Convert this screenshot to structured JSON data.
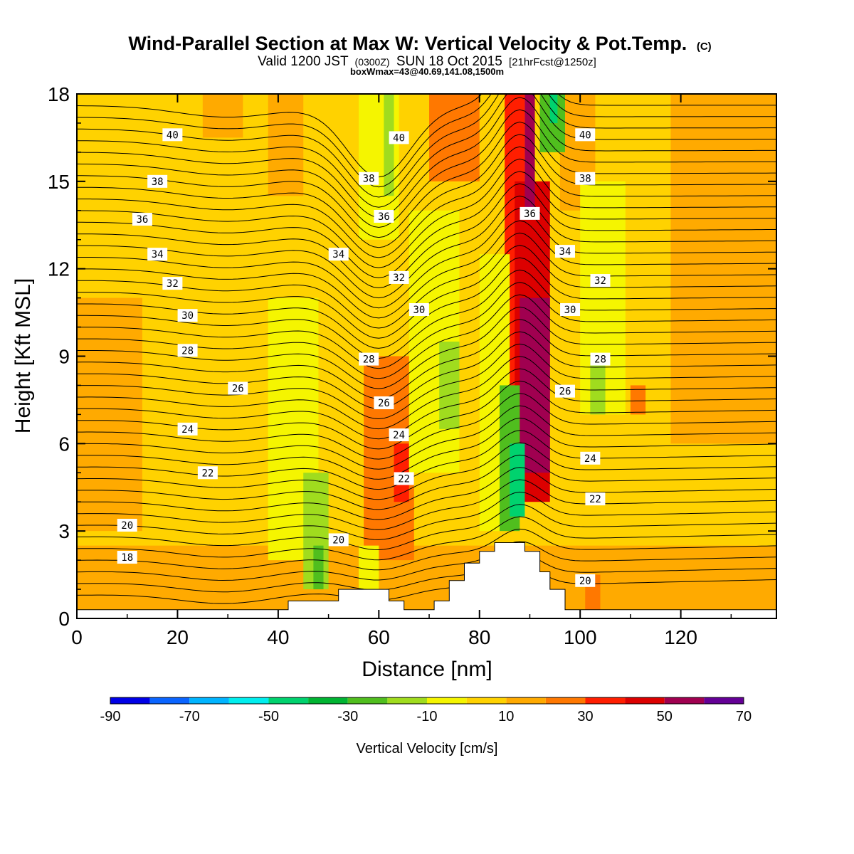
{
  "title": {
    "main": "Wind-Parallel Section at Max W: Vertical Velocity & Pot.Temp.",
    "main_mark": "(C)",
    "valid_a": "Valid 1200 JST",
    "valid_utc": "(0300Z)",
    "valid_b": "SUN 18 Oct 2015",
    "valid_fcst": "[21hrFcst@1250z]",
    "boxmax": "boxWmax=43@40.69,141.08,1500m"
  },
  "chart_data": {
    "type": "heatmap",
    "xlabel": "Distance [nm]",
    "ylabel": "Height [Kft MSL]",
    "xlim": [
      0,
      139
    ],
    "ylim": [
      0,
      18
    ],
    "x_ticks": [
      0,
      20,
      40,
      60,
      80,
      100,
      120
    ],
    "y_ticks": [
      0,
      3,
      6,
      9,
      12,
      15,
      18
    ],
    "colorbar": {
      "label": "Vertical Velocity [cm/s]",
      "tick_labels": [
        "-90",
        "-70",
        "-50",
        "-30",
        "-10",
        "10",
        "30",
        "50",
        "70"
      ],
      "colors": [
        "#0000e6",
        "#0a64ff",
        "#00b4ff",
        "#00eeee",
        "#00d26e",
        "#00b432",
        "#50be1e",
        "#a0dc1e",
        "#f5f500",
        "#ffd200",
        "#ffaa00",
        "#ff7800",
        "#ff1e00",
        "#dc0000",
        "#a00050",
        "#640096"
      ]
    },
    "vertical_velocity_cells": [
      {
        "x": [
          0,
          139
        ],
        "y": [
          0,
          18
        ],
        "w": 5
      },
      {
        "x": [
          0,
          139
        ],
        "y": [
          0,
          2.5
        ],
        "w": 10
      },
      {
        "x": [
          0,
          13
        ],
        "y": [
          3,
          11
        ],
        "w": 10
      },
      {
        "x": [
          25,
          33
        ],
        "y": [
          16.5,
          18
        ],
        "w": 10
      },
      {
        "x": [
          38,
          45
        ],
        "y": [
          14.5,
          18
        ],
        "w": 10
      },
      {
        "x": [
          96,
          103
        ],
        "y": [
          14,
          18
        ],
        "w": 10
      },
      {
        "x": [
          118,
          139
        ],
        "y": [
          6,
          18
        ],
        "w": 10
      },
      {
        "x": [
          57,
          67
        ],
        "y": [
          2,
          9
        ],
        "w": 20
      },
      {
        "x": [
          63,
          66
        ],
        "y": [
          4,
          6
        ],
        "w": 30
      },
      {
        "x": [
          70,
          80
        ],
        "y": [
          15,
          18
        ],
        "w": 20
      },
      {
        "x": [
          85,
          89
        ],
        "y": [
          8,
          18
        ],
        "w": 30
      },
      {
        "x": [
          87,
          94
        ],
        "y": [
          4,
          15
        ],
        "w": 40
      },
      {
        "x": [
          88,
          94
        ],
        "y": [
          5,
          11
        ],
        "w": 50
      },
      {
        "x": [
          89,
          91
        ],
        "y": [
          14,
          18
        ],
        "w": 50
      },
      {
        "x": [
          110,
          113
        ],
        "y": [
          7,
          8
        ],
        "w": 20
      },
      {
        "x": [
          101,
          104
        ],
        "y": [
          0,
          1.5
        ],
        "w": 20
      },
      {
        "x": [
          38,
          48
        ],
        "y": [
          2,
          11
        ],
        "w": -10
      },
      {
        "x": [
          45,
          50
        ],
        "y": [
          1,
          5
        ],
        "w": -20
      },
      {
        "x": [
          47,
          49
        ],
        "y": [
          1,
          2.5
        ],
        "w": -30
      },
      {
        "x": [
          56,
          60
        ],
        "y": [
          0.5,
          2.5
        ],
        "w": -10
      },
      {
        "x": [
          56,
          64
        ],
        "y": [
          13,
          18
        ],
        "w": -10
      },
      {
        "x": [
          61,
          63
        ],
        "y": [
          14.5,
          18
        ],
        "w": -20
      },
      {
        "x": [
          66,
          76
        ],
        "y": [
          5,
          14
        ],
        "w": -10
      },
      {
        "x": [
          72,
          76
        ],
        "y": [
          6.5,
          9.5
        ],
        "w": -20
      },
      {
        "x": [
          80,
          86
        ],
        "y": [
          3,
          12.5
        ],
        "w": -10
      },
      {
        "x": [
          84,
          88
        ],
        "y": [
          3,
          8
        ],
        "w": -30
      },
      {
        "x": [
          86,
          89
        ],
        "y": [
          3.5,
          6
        ],
        "w": -50
      },
      {
        "x": [
          92,
          97
        ],
        "y": [
          16,
          18
        ],
        "w": -30
      },
      {
        "x": [
          94,
          95.5
        ],
        "y": [
          17,
          18
        ],
        "w": -50
      },
      {
        "x": [
          100,
          109
        ],
        "y": [
          7,
          15
        ],
        "w": -10
      },
      {
        "x": [
          102,
          105
        ],
        "y": [
          7,
          9
        ],
        "w": -20
      }
    ],
    "terrain_profile": {
      "x": [
        0,
        42,
        42,
        43,
        43,
        52,
        52,
        62,
        62,
        65,
        65,
        71,
        71,
        74,
        74,
        77,
        77,
        80,
        80,
        83,
        83,
        89,
        89,
        92,
        92,
        94,
        94,
        97,
        97,
        139
      ],
      "y": [
        0.3,
        0.3,
        0.6,
        0.6,
        0.6,
        0.6,
        1.0,
        1.0,
        0.6,
        0.6,
        0.3,
        0.3,
        0.6,
        0.6,
        1.3,
        1.3,
        1.9,
        1.9,
        2.3,
        2.3,
        2.6,
        2.6,
        2.3,
        2.3,
        1.6,
        1.6,
        1.0,
        1.0,
        0.3,
        0.3
      ]
    },
    "potential_temperature_contours": {
      "base_heights": [
        0.8,
        1.2,
        1.6,
        2.0,
        2.4,
        2.8,
        3.2,
        3.6,
        4.0,
        4.4,
        4.8,
        5.2,
        5.6,
        6.0,
        6.4,
        6.8,
        7.2,
        7.6,
        8.0,
        8.4,
        8.8,
        9.2,
        9.6,
        10.0,
        10.4,
        10.8,
        11.2,
        11.6,
        12.0,
        12.4,
        12.8,
        13.2,
        13.6,
        14.0,
        14.4,
        14.8,
        15.2,
        15.6,
        16.0,
        16.4,
        16.8,
        17.2,
        17.6
      ],
      "labels": [
        {
          "text": "40",
          "x": 19,
          "y": 16.6
        },
        {
          "text": "40",
          "x": 64,
          "y": 16.5
        },
        {
          "text": "40",
          "x": 101,
          "y": 16.6
        },
        {
          "text": "38",
          "x": 16,
          "y": 15.0
        },
        {
          "text": "38",
          "x": 58,
          "y": 15.1
        },
        {
          "text": "38",
          "x": 101,
          "y": 15.1
        },
        {
          "text": "36",
          "x": 13,
          "y": 13.7
        },
        {
          "text": "36",
          "x": 61,
          "y": 13.8
        },
        {
          "text": "36",
          "x": 90,
          "y": 13.9
        },
        {
          "text": "34",
          "x": 16,
          "y": 12.5
        },
        {
          "text": "34",
          "x": 52,
          "y": 12.5
        },
        {
          "text": "34",
          "x": 97,
          "y": 12.6
        },
        {
          "text": "32",
          "x": 19,
          "y": 11.5
        },
        {
          "text": "32",
          "x": 64,
          "y": 11.7
        },
        {
          "text": "32",
          "x": 104,
          "y": 11.6
        },
        {
          "text": "30",
          "x": 22,
          "y": 10.4
        },
        {
          "text": "30",
          "x": 68,
          "y": 10.6
        },
        {
          "text": "30",
          "x": 98,
          "y": 10.6
        },
        {
          "text": "28",
          "x": 22,
          "y": 9.2
        },
        {
          "text": "28",
          "x": 58,
          "y": 8.9
        },
        {
          "text": "28",
          "x": 104,
          "y": 8.9
        },
        {
          "text": "26",
          "x": 32,
          "y": 7.9
        },
        {
          "text": "26",
          "x": 61,
          "y": 7.4
        },
        {
          "text": "26",
          "x": 97,
          "y": 7.8
        },
        {
          "text": "24",
          "x": 22,
          "y": 6.5
        },
        {
          "text": "24",
          "x": 64,
          "y": 6.3
        },
        {
          "text": "24",
          "x": 102,
          "y": 5.5
        },
        {
          "text": "22",
          "x": 26,
          "y": 5.0
        },
        {
          "text": "22",
          "x": 65,
          "y": 4.8
        },
        {
          "text": "22",
          "x": 103,
          "y": 4.1
        },
        {
          "text": "20",
          "x": 10,
          "y": 3.2
        },
        {
          "text": "20",
          "x": 52,
          "y": 2.7
        },
        {
          "text": "20",
          "x": 101,
          "y": 1.3
        },
        {
          "text": "18",
          "x": 10,
          "y": 2.1
        }
      ]
    }
  }
}
